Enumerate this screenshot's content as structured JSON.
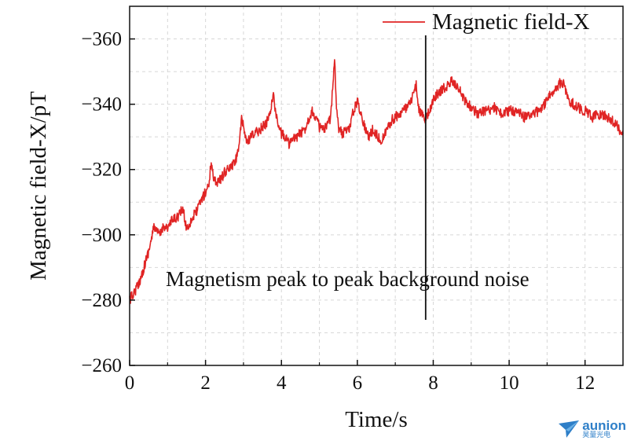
{
  "chart_data": {
    "type": "line",
    "xlabel": "Time/s",
    "ylabel": "Magnetic field-X/pT",
    "xlim": [
      0,
      13
    ],
    "ylim": [
      -370,
      -260
    ],
    "x_ticks": [
      0,
      2,
      4,
      6,
      8,
      10,
      12
    ],
    "y_ticks": [
      -360,
      -340,
      -320,
      -300,
      -280,
      -260
    ],
    "y_tick_labels": [
      "−360",
      "−340",
      "−320",
      "−300",
      "−280",
      "−260"
    ],
    "grid": true,
    "legend_position": "top-right",
    "series": [
      {
        "name": "Magnetic field-X",
        "color": "#e02424",
        "x": [
          0,
          0.1,
          0.2,
          0.3,
          0.4,
          0.5,
          0.6,
          0.65,
          0.7,
          0.8,
          0.9,
          1.0,
          1.1,
          1.2,
          1.3,
          1.4,
          1.5,
          1.6,
          1.7,
          1.8,
          1.9,
          2.0,
          2.1,
          2.15,
          2.2,
          2.3,
          2.4,
          2.5,
          2.6,
          2.7,
          2.8,
          2.9,
          2.95,
          3.0,
          3.1,
          3.2,
          3.3,
          3.4,
          3.5,
          3.6,
          3.7,
          3.8,
          3.85,
          3.9,
          4.0,
          4.1,
          4.2,
          4.3,
          4.4,
          4.5,
          4.6,
          4.7,
          4.8,
          4.9,
          5.0,
          5.1,
          5.2,
          5.3,
          5.35,
          5.4,
          5.45,
          5.5,
          5.6,
          5.7,
          5.8,
          5.9,
          6.0,
          6.05,
          6.1,
          6.2,
          6.3,
          6.4,
          6.5,
          6.6,
          6.7,
          6.8,
          6.9,
          7.0,
          7.1,
          7.2,
          7.3,
          7.4,
          7.5,
          7.55,
          7.6,
          7.7,
          7.8,
          7.9,
          8.0,
          8.1,
          8.2,
          8.3,
          8.4,
          8.5,
          8.6,
          8.7,
          8.8,
          8.9,
          9.0,
          9.2,
          9.4,
          9.6,
          9.8,
          10.0,
          10.2,
          10.4,
          10.6,
          10.8,
          11.0,
          11.1,
          11.2,
          11.3,
          11.4,
          11.5,
          11.6,
          11.8,
          12.0,
          12.2,
          12.4,
          12.6,
          12.8,
          13.0
        ],
        "y": [
          -280,
          -282,
          -284,
          -287,
          -291,
          -295,
          -300,
          -303,
          -301,
          -300,
          -303,
          -302,
          -304,
          -305,
          -306,
          -308,
          -302,
          -304,
          -306,
          -308,
          -311,
          -313,
          -316,
          -323,
          -318,
          -316,
          -317,
          -319,
          -320,
          -321,
          -323,
          -329,
          -335,
          -333,
          -328,
          -330,
          -331,
          -332,
          -333,
          -334,
          -338,
          -343,
          -337,
          -334,
          -331,
          -330,
          -328,
          -329,
          -330,
          -331,
          -332,
          -335,
          -338,
          -336,
          -333,
          -332,
          -333,
          -336,
          -346,
          -354,
          -340,
          -333,
          -331,
          -332,
          -333,
          -338,
          -341,
          -339,
          -337,
          -333,
          -330,
          -332,
          -331,
          -329,
          -330,
          -333,
          -335,
          -336,
          -337,
          -338,
          -339,
          -340,
          -344,
          -346,
          -339,
          -337,
          -335,
          -338,
          -341,
          -343,
          -344,
          -345,
          -346,
          -347,
          -346,
          -344,
          -342,
          -340,
          -339,
          -337,
          -338,
          -339,
          -337,
          -338,
          -338,
          -336,
          -337,
          -338,
          -341,
          -343,
          -345,
          -346,
          -347,
          -344,
          -341,
          -339,
          -338,
          -336,
          -337,
          -336,
          -334,
          -331
        ]
      }
    ],
    "annotations": [
      {
        "text": "Magnetism peak to peak background noise",
        "x": 7.8
      }
    ]
  },
  "logo": {
    "text": "aunion",
    "subtext": "昊量光电"
  }
}
